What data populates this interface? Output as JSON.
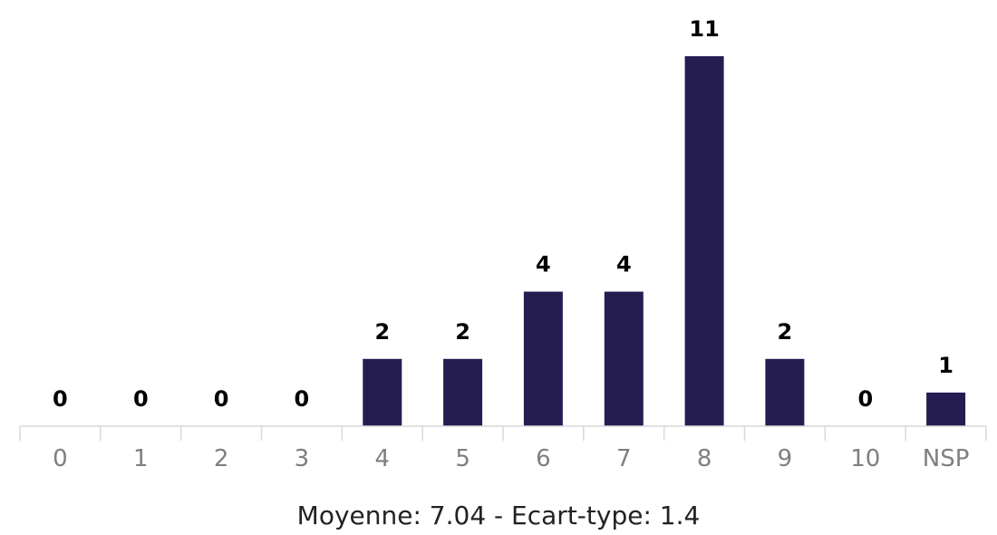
{
  "chart_data": {
    "type": "bar",
    "categories": [
      "0",
      "1",
      "2",
      "3",
      "4",
      "5",
      "6",
      "7",
      "8",
      "9",
      "10",
      "NSP"
    ],
    "values": [
      0,
      0,
      0,
      0,
      2,
      2,
      4,
      4,
      11,
      2,
      0,
      1
    ],
    "title": "",
    "xlabel": "",
    "ylabel": "",
    "ylim": [
      0,
      11
    ],
    "grid": false,
    "legend": "none",
    "bar_color": "#251d52",
    "axis_color": "#d9d9d9",
    "tick_label_color": "#7f7f7f",
    "data_label_color": "#000000"
  },
  "footer": {
    "stats": "Moyenne: 7.04 - Ecart-type: 1.4"
  }
}
